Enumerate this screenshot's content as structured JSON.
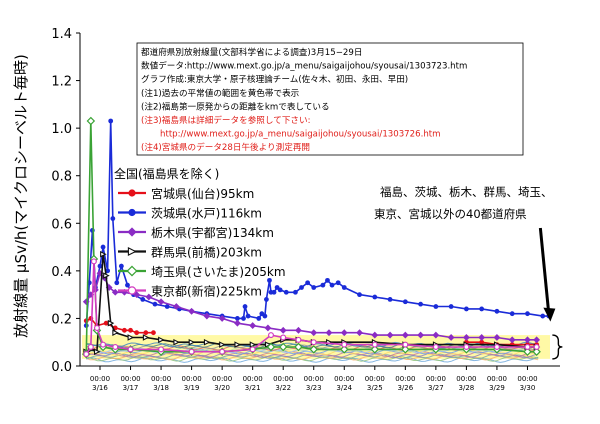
{
  "chart_data": {
    "type": "line",
    "ylabel": "放射線量 μSv/h(マイクロシーベルト毎時)",
    "ylim": [
      0,
      1.4
    ],
    "yticks": [
      "0.0",
      "0.2",
      "0.4",
      "0.6",
      "0.8",
      "1.0",
      "1.2",
      "1.4"
    ],
    "xlim": [
      0,
      15
    ],
    "xticks": [
      {
        "time": "00:00",
        "date": "3/16"
      },
      {
        "time": "00:00",
        "date": "3/17"
      },
      {
        "time": "00:00",
        "date": "3/18"
      },
      {
        "time": "00:00",
        "date": "3/19"
      },
      {
        "time": "00:00",
        "date": "3/20"
      },
      {
        "time": "00:00",
        "date": "3/21"
      },
      {
        "time": "00:00",
        "date": "3/22"
      },
      {
        "time": "00:00",
        "date": "3/23"
      },
      {
        "time": "00:00",
        "date": "3/24"
      },
      {
        "time": "00:00",
        "date": "3/25"
      },
      {
        "time": "00:00",
        "date": "3/26"
      },
      {
        "time": "00:00",
        "date": "3/27"
      },
      {
        "time": "00:00",
        "date": "3/28"
      },
      {
        "time": "00:00",
        "date": "3/29"
      },
      {
        "time": "00:00",
        "date": "3/30"
      }
    ],
    "normal_band": [
      0.03,
      0.13
    ],
    "notes": [
      {
        "text": "都道府県別放射線量(文部科学省による調査)3月15−29日",
        "color": "#000000"
      },
      {
        "text": "数値データ:http://www.mext.go.jp/a_menu/saigaijohou/syousai/1303723.htm",
        "color": "#000000"
      },
      {
        "text": "グラフ作成:東京大学・原子核理論チーム(佐々木、初田、永田、早田)",
        "color": "#000000"
      },
      {
        "text": "(注1)過去の平常値の範囲を黄色帯で表示",
        "color": "#000000"
      },
      {
        "text": "(注2)福島第一原発からの距離をkmで表している",
        "color": "#000000"
      },
      {
        "text": "(注3)福島県は詳細データを参照して下さい:",
        "color": "#e0201b"
      },
      {
        "text": "http://www.mext.go.jp/a_menu/saigaijohou/syousai/1303726.htm",
        "color": "#e0201b"
      },
      {
        "text": "(注4)宮城県のデータ28日午後より測定再開",
        "color": "#e0201b"
      }
    ],
    "legend_title": "全国(福島県を除く)",
    "series": [
      {
        "name": "宮城県(仙台)95km",
        "color": "#e5101a",
        "marker": "circle",
        "points": [
          [
            -0.45,
            0.19
          ],
          [
            -0.3,
            0.2
          ],
          [
            -0.1,
            0.17
          ],
          [
            0.2,
            0.18
          ],
          [
            0.5,
            0.16
          ],
          [
            0.8,
            0.15
          ],
          [
            1.0,
            0.15
          ],
          [
            1.2,
            0.14
          ],
          [
            1.5,
            0.14
          ],
          [
            1.75,
            0.14
          ],
          [
            12.0,
            0.1
          ],
          [
            12.5,
            0.1
          ],
          [
            13.0,
            0.09
          ],
          [
            13.5,
            0.09
          ],
          [
            14.0,
            0.09
          ],
          [
            14.3,
            0.09
          ]
        ]
      },
      {
        "name": "茨城県(水戸)116km",
        "color": "#1a2bd8",
        "marker": "circle",
        "points": [
          [
            -0.45,
            0.17
          ],
          [
            -0.35,
            0.35
          ],
          [
            -0.25,
            0.57
          ],
          [
            -0.15,
            0.33
          ],
          [
            0.0,
            0.42
          ],
          [
            0.1,
            0.5
          ],
          [
            0.25,
            0.4
          ],
          [
            0.35,
            1.03
          ],
          [
            0.42,
            0.62
          ],
          [
            0.55,
            0.35
          ],
          [
            0.7,
            0.42
          ],
          [
            0.9,
            0.34
          ],
          [
            1.1,
            0.3
          ],
          [
            1.4,
            0.28
          ],
          [
            1.8,
            0.26
          ],
          [
            2.2,
            0.25
          ],
          [
            2.6,
            0.24
          ],
          [
            3.0,
            0.23
          ],
          [
            3.5,
            0.22
          ],
          [
            4.0,
            0.21
          ],
          [
            4.5,
            0.2
          ],
          [
            4.7,
            0.2
          ],
          [
            4.75,
            0.25
          ],
          [
            4.85,
            0.21
          ],
          [
            5.2,
            0.2
          ],
          [
            5.3,
            0.22
          ],
          [
            5.4,
            0.21
          ],
          [
            5.45,
            0.28
          ],
          [
            5.55,
            0.36
          ],
          [
            5.6,
            0.31
          ],
          [
            5.7,
            0.31
          ],
          [
            5.8,
            0.33
          ],
          [
            5.9,
            0.32
          ],
          [
            6.1,
            0.31
          ],
          [
            6.4,
            0.31
          ],
          [
            6.6,
            0.33
          ],
          [
            6.8,
            0.35
          ],
          [
            7.0,
            0.33
          ],
          [
            7.3,
            0.34
          ],
          [
            7.45,
            0.36
          ],
          [
            7.6,
            0.34
          ],
          [
            7.8,
            0.35
          ],
          [
            8.0,
            0.33
          ],
          [
            8.5,
            0.3
          ],
          [
            9.0,
            0.29
          ],
          [
            9.5,
            0.28
          ],
          [
            10.0,
            0.27
          ],
          [
            10.5,
            0.26
          ],
          [
            11.0,
            0.25
          ],
          [
            11.5,
            0.25
          ],
          [
            12.0,
            0.24
          ],
          [
            12.5,
            0.24
          ],
          [
            13.0,
            0.23
          ],
          [
            13.5,
            0.22
          ],
          [
            14.0,
            0.22
          ],
          [
            14.5,
            0.21
          ],
          [
            14.7,
            0.21
          ]
        ]
      },
      {
        "name": "栃木県(宇都宮)134km",
        "color": "#8a2cc4",
        "marker": "diamond",
        "points": [
          [
            -0.45,
            0.27
          ],
          [
            -0.3,
            0.3
          ],
          [
            -0.15,
            0.32
          ],
          [
            0.0,
            0.39
          ],
          [
            0.15,
            0.37
          ],
          [
            0.3,
            0.33
          ],
          [
            0.5,
            0.31
          ],
          [
            0.8,
            0.31
          ],
          [
            1.2,
            0.3
          ],
          [
            1.6,
            0.29
          ],
          [
            2.0,
            0.27
          ],
          [
            2.5,
            0.25
          ],
          [
            3.0,
            0.23
          ],
          [
            3.5,
            0.21
          ],
          [
            4.0,
            0.2
          ],
          [
            4.5,
            0.18
          ],
          [
            5.0,
            0.17
          ],
          [
            5.5,
            0.16
          ],
          [
            6.0,
            0.15
          ],
          [
            6.5,
            0.15
          ],
          [
            7.0,
            0.14
          ],
          [
            7.5,
            0.14
          ],
          [
            8.0,
            0.14
          ],
          [
            8.5,
            0.14
          ],
          [
            9.0,
            0.13
          ],
          [
            9.5,
            0.13
          ],
          [
            10.0,
            0.13
          ],
          [
            10.5,
            0.13
          ],
          [
            11.0,
            0.13
          ],
          [
            11.5,
            0.12
          ],
          [
            12.0,
            0.12
          ],
          [
            12.5,
            0.12
          ],
          [
            13.0,
            0.12
          ],
          [
            13.5,
            0.11
          ],
          [
            14.0,
            0.11
          ],
          [
            14.3,
            0.11
          ]
        ]
      },
      {
        "name": "群馬県(前橋)203km",
        "color": "#111111",
        "marker": "triangle",
        "points": [
          [
            -0.45,
            0.06
          ],
          [
            -0.3,
            0.07
          ],
          [
            -0.1,
            0.06
          ],
          [
            0.1,
            0.47
          ],
          [
            0.2,
            0.38
          ],
          [
            0.35,
            0.18
          ],
          [
            0.5,
            0.14
          ],
          [
            1.0,
            0.12
          ],
          [
            1.5,
            0.12
          ],
          [
            2.0,
            0.11
          ],
          [
            2.5,
            0.1
          ],
          [
            3.0,
            0.1
          ],
          [
            3.5,
            0.1
          ],
          [
            4.0,
            0.09
          ],
          [
            4.5,
            0.09
          ],
          [
            5.0,
            0.09
          ],
          [
            5.5,
            0.09
          ],
          [
            6.0,
            0.11
          ],
          [
            6.5,
            0.11
          ],
          [
            7.0,
            0.1
          ],
          [
            7.5,
            0.1
          ],
          [
            8.0,
            0.1
          ],
          [
            9.0,
            0.1
          ],
          [
            10.0,
            0.09
          ],
          [
            11.0,
            0.09
          ],
          [
            12.0,
            0.09
          ],
          [
            13.0,
            0.09
          ],
          [
            14.0,
            0.08
          ],
          [
            14.3,
            0.08
          ]
        ]
      },
      {
        "name": "埼玉県(さいたま)205km",
        "color": "#3aa335",
        "marker": "diamond-open",
        "points": [
          [
            -0.45,
            0.05
          ],
          [
            -0.3,
            1.03
          ],
          [
            -0.2,
            0.45
          ],
          [
            -0.1,
            0.15
          ],
          [
            0.1,
            0.08
          ],
          [
            0.5,
            0.07
          ],
          [
            1.0,
            0.07
          ],
          [
            2.0,
            0.06
          ],
          [
            3.0,
            0.06
          ],
          [
            4.0,
            0.06
          ],
          [
            5.0,
            0.07
          ],
          [
            5.6,
            0.08
          ],
          [
            6.0,
            0.08
          ],
          [
            6.5,
            0.08
          ],
          [
            7.0,
            0.07
          ],
          [
            8.0,
            0.07
          ],
          [
            9.0,
            0.07
          ],
          [
            10.0,
            0.07
          ],
          [
            11.0,
            0.07
          ],
          [
            12.0,
            0.07
          ],
          [
            13.0,
            0.07
          ],
          [
            14.0,
            0.06
          ],
          [
            14.3,
            0.06
          ]
        ]
      },
      {
        "name": "東京都(新宿)225km",
        "color": "#d23cc0",
        "marker": "circle-open",
        "points": [
          [
            -0.45,
            0.05
          ],
          [
            -0.3,
            0.08
          ],
          [
            -0.2,
            0.44
          ],
          [
            -0.1,
            0.16
          ],
          [
            0.1,
            0.09
          ],
          [
            0.5,
            0.08
          ],
          [
            1.0,
            0.07
          ],
          [
            2.0,
            0.07
          ],
          [
            3.0,
            0.06
          ],
          [
            4.0,
            0.06
          ],
          [
            5.0,
            0.07
          ],
          [
            5.6,
            0.13
          ],
          [
            6.0,
            0.12
          ],
          [
            6.5,
            0.11
          ],
          [
            7.0,
            0.1
          ],
          [
            8.0,
            0.09
          ],
          [
            9.0,
            0.09
          ],
          [
            10.0,
            0.09
          ],
          [
            11.0,
            0.08
          ],
          [
            12.0,
            0.08
          ],
          [
            13.0,
            0.08
          ],
          [
            14.0,
            0.08
          ],
          [
            14.3,
            0.08
          ]
        ]
      }
    ],
    "others_lines": {
      "color_cycle": [
        "#6fa8dc",
        "#93c47d",
        "#f6b26b",
        "#76a5af",
        "#8e7cc3",
        "#c27ba0",
        "#ffd966",
        "#6d9eeb",
        "#a4c2f4",
        "#b6d7a8",
        "#e06666",
        "#999999",
        "#45818e",
        "#3d85c6"
      ],
      "levels": [
        0.025,
        0.03,
        0.035,
        0.04,
        0.045,
        0.05,
        0.055,
        0.06,
        0.065,
        0.07,
        0.075,
        0.08,
        0.085,
        0.09
      ]
    },
    "annotation": {
      "lines": [
        "福島、茨城、栃木、群馬、埼玉、",
        "東京、宮城以外の40都道府県"
      ],
      "arrow_target": [
        14.75,
        0.06
      ]
    }
  }
}
